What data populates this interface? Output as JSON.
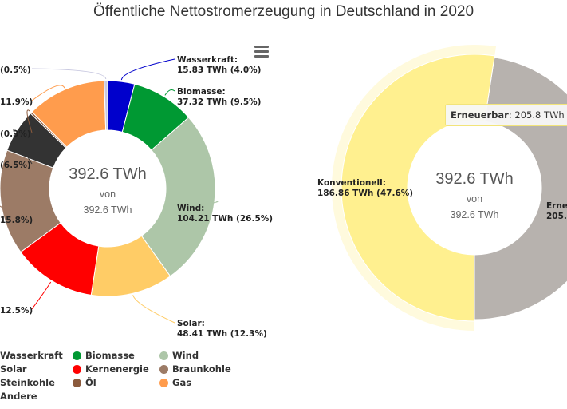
{
  "title": "Öffentliche Nettostromerzeugung in Deutschland in 2020",
  "chart_data": [
    {
      "type": "pie",
      "variant": "donut",
      "unit": "TWh",
      "center": {
        "value": "392.6 TWh",
        "of": "von",
        "total": "392.6 TWh"
      },
      "slices": [
        {
          "name": "Wasserkraft",
          "value": 15.83,
          "percent": 4.0,
          "color": "#0000cc",
          "label": "15.83 TWh (4.0%)"
        },
        {
          "name": "Biomasse",
          "value": 37.32,
          "percent": 9.5,
          "color": "#009933",
          "label": "37.32 TWh (9.5%)"
        },
        {
          "name": "Wind",
          "value": 104.21,
          "percent": 26.5,
          "color": "#adc6a8",
          "label": "104.21 TWh (26.5%)"
        },
        {
          "name": "Solar",
          "value": 48.41,
          "percent": 12.3,
          "color": "#ffcc66",
          "label": "48.41 TWh (12.3%)"
        },
        {
          "name": "Kernenergie",
          "value": 49.1,
          "percent": 12.5,
          "color": "#ff0000",
          "label": "12.5%)"
        },
        {
          "name": "Braunkohle",
          "value": 62.0,
          "percent": 15.8,
          "color": "#9c7b66",
          "label": "15.8%)"
        },
        {
          "name": "Steinkohle",
          "value": 25.5,
          "percent": 6.5,
          "color": "#333333",
          "label": "(6.5%)"
        },
        {
          "name": "Öl",
          "value": 1.2,
          "percent": 0.3,
          "color": "#8b5a3c",
          "label": "(0.3%)"
        },
        {
          "name": "Gas",
          "value": 46.7,
          "percent": 11.9,
          "color": "#ff9c4d",
          "label": "11.9%)"
        },
        {
          "name": "Andere",
          "value": 2.0,
          "percent": 0.5,
          "color": "#c8c8e0",
          "label": "(0.5%)"
        }
      ],
      "legend_placement": "bottom"
    },
    {
      "type": "pie",
      "variant": "donut",
      "unit": "TWh",
      "center": {
        "value": "392.6 TWh",
        "of": "von",
        "total": "392.6 TWh"
      },
      "slices": [
        {
          "name": "Konventionell",
          "value": 186.86,
          "percent": 47.6,
          "color": "#b7b2ae",
          "label_name": "Konventionell:",
          "label_value": "186.86 TWh (47.6%)"
        },
        {
          "name": "Erneuerbar",
          "value": 205.8,
          "percent": 52.4,
          "color": "#fff08f",
          "label_name": "Erne",
          "label_value": "205."
        }
      ],
      "tooltip": {
        "name": "Erneuerbar",
        "value": "205.8 TWh (5"
      }
    }
  ],
  "legend": {
    "items": [
      {
        "name": "Wasserkraft",
        "color": "#0000cc"
      },
      {
        "name": "Biomasse",
        "color": "#009933"
      },
      {
        "name": "Wind",
        "color": "#adc6a8"
      },
      {
        "name": "Solar",
        "color": "#ffcc66"
      },
      {
        "name": "Kernenergie",
        "color": "#ff0000"
      },
      {
        "name": "Braunkohle",
        "color": "#9c7b66"
      },
      {
        "name": "Steinkohle",
        "color": "#333333"
      },
      {
        "name": "Öl",
        "color": "#8b5a3c"
      },
      {
        "name": "Gas",
        "color": "#ff9c4d"
      },
      {
        "name": "Andere",
        "color": "#c8c8e0"
      }
    ]
  },
  "menu_icon": "hamburger-menu-icon"
}
